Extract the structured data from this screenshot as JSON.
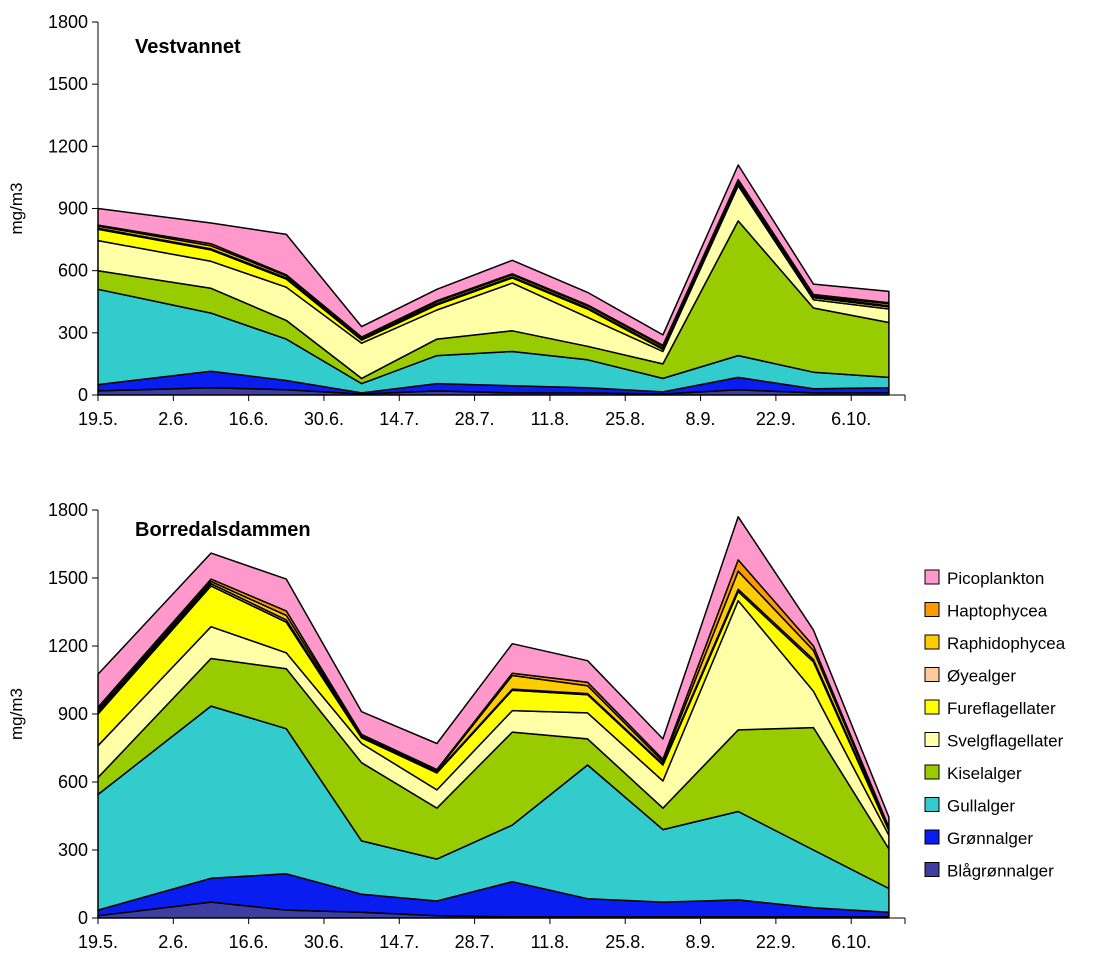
{
  "colors": {
    "Blågrønnalger": "#3d3ea0",
    "Grønnalger": "#0a1df0",
    "Gullalger": "#33cccc",
    "Kiselalger": "#99cc00",
    "Svelgflagellater": "#ffffa8",
    "Fureflagellater": "#ffff00",
    "Øyealger": "#ffcc99",
    "Raphidophycea": "#ffcc00",
    "Haptophycea": "#ff9900",
    "Picoplankton": "#ff99cc"
  },
  "legend": {
    "position": "right",
    "items": [
      "Picoplankton",
      "Haptophycea",
      "Raphidophycea",
      "Øyealger",
      "Fureflagellater",
      "Svelgflagellater",
      "Kiselalger",
      "Gullalger",
      "Grønnalger",
      "Blågrønnalger"
    ]
  },
  "chart_data": [
    {
      "type": "area",
      "stacked": true,
      "title": "Vestvannet",
      "ylabel": "mg/m3",
      "ylim": [
        0,
        1800
      ],
      "yticks": [
        0,
        300,
        600,
        900,
        1200,
        1500,
        1800
      ],
      "xticks": [
        "19.5.",
        "2.6.",
        "16.6.",
        "30.6.",
        "14.7.",
        "28.7.",
        "11.8.",
        "25.8.",
        "8.9.",
        "22.9.",
        "6.10."
      ],
      "xlim": [
        0,
        150
      ],
      "x": [
        0,
        21,
        35,
        49,
        63,
        77,
        91,
        105,
        119,
        133,
        147
      ],
      "series": [
        {
          "name": "Blågrønnalger",
          "values": [
            20,
            35,
            25,
            5,
            20,
            10,
            10,
            5,
            25,
            10,
            10
          ]
        },
        {
          "name": "Grønnalger",
          "values": [
            30,
            80,
            45,
            5,
            35,
            35,
            25,
            10,
            60,
            20,
            25
          ]
        },
        {
          "name": "Gullalger",
          "values": [
            460,
            280,
            200,
            45,
            135,
            165,
            135,
            65,
            105,
            80,
            50
          ]
        },
        {
          "name": "Kiselalger",
          "values": [
            90,
            120,
            90,
            25,
            80,
            100,
            65,
            70,
            650,
            310,
            265
          ]
        },
        {
          "name": "Svelgflagellater",
          "values": [
            145,
            130,
            160,
            170,
            140,
            230,
            140,
            60,
            170,
            40,
            65
          ]
        },
        {
          "name": "Fureflagellater",
          "values": [
            55,
            55,
            40,
            15,
            25,
            25,
            40,
            10,
            10,
            10,
            10
          ]
        },
        {
          "name": "Øyealger",
          "values": [
            5,
            5,
            5,
            5,
            5,
            5,
            5,
            5,
            5,
            5,
            5
          ]
        },
        {
          "name": "Raphidophycea",
          "values": [
            10,
            15,
            10,
            5,
            10,
            10,
            10,
            10,
            10,
            5,
            10
          ]
        },
        {
          "name": "Haptophycea",
          "values": [
            5,
            10,
            5,
            5,
            5,
            5,
            5,
            5,
            5,
            5,
            5
          ]
        },
        {
          "name": "Picoplankton",
          "values": [
            80,
            100,
            195,
            50,
            55,
            65,
            60,
            50,
            70,
            50,
            55
          ]
        }
      ]
    },
    {
      "type": "area",
      "stacked": true,
      "title": "Borredalsdammen",
      "ylabel": "mg/m3",
      "ylim": [
        0,
        1800
      ],
      "yticks": [
        0,
        300,
        600,
        900,
        1200,
        1500,
        1800
      ],
      "xticks": [
        "19.5.",
        "2.6.",
        "16.6.",
        "30.6.",
        "14.7.",
        "28.7.",
        "11.8.",
        "25.8.",
        "8.9.",
        "22.9.",
        "6.10."
      ],
      "xlim": [
        0,
        150
      ],
      "x": [
        0,
        21,
        35,
        49,
        63,
        77,
        91,
        105,
        119,
        133,
        147
      ],
      "series": [
        {
          "name": "Blågrønnalger",
          "values": [
            10,
            70,
            35,
            25,
            10,
            5,
            5,
            5,
            5,
            5,
            5
          ]
        },
        {
          "name": "Grønnalger",
          "values": [
            25,
            105,
            160,
            80,
            65,
            155,
            80,
            65,
            75,
            40,
            20
          ]
        },
        {
          "name": "Gullalger",
          "values": [
            510,
            760,
            640,
            235,
            185,
            250,
            590,
            320,
            390,
            255,
            105
          ]
        },
        {
          "name": "Kiselalger",
          "values": [
            75,
            210,
            265,
            345,
            225,
            410,
            115,
            95,
            360,
            540,
            175
          ]
        },
        {
          "name": "Svelgflagellater",
          "values": [
            140,
            140,
            70,
            85,
            80,
            95,
            115,
            120,
            570,
            160,
            60
          ]
        },
        {
          "name": "Fureflagellater",
          "values": [
            140,
            180,
            135,
            25,
            75,
            90,
            80,
            70,
            40,
            130,
            20
          ]
        },
        {
          "name": "Øyealger",
          "values": [
            10,
            10,
            10,
            5,
            5,
            5,
            5,
            5,
            10,
            10,
            5
          ]
        },
        {
          "name": "Raphidophycea",
          "values": [
            10,
            10,
            20,
            5,
            5,
            60,
            35,
            10,
            80,
            40,
            5
          ]
        },
        {
          "name": "Haptophycea",
          "values": [
            10,
            10,
            20,
            5,
            5,
            10,
            15,
            10,
            50,
            20,
            5
          ]
        },
        {
          "name": "Picoplankton",
          "values": [
            145,
            115,
            140,
            100,
            115,
            130,
            95,
            90,
            190,
            70,
            45
          ]
        }
      ]
    }
  ]
}
